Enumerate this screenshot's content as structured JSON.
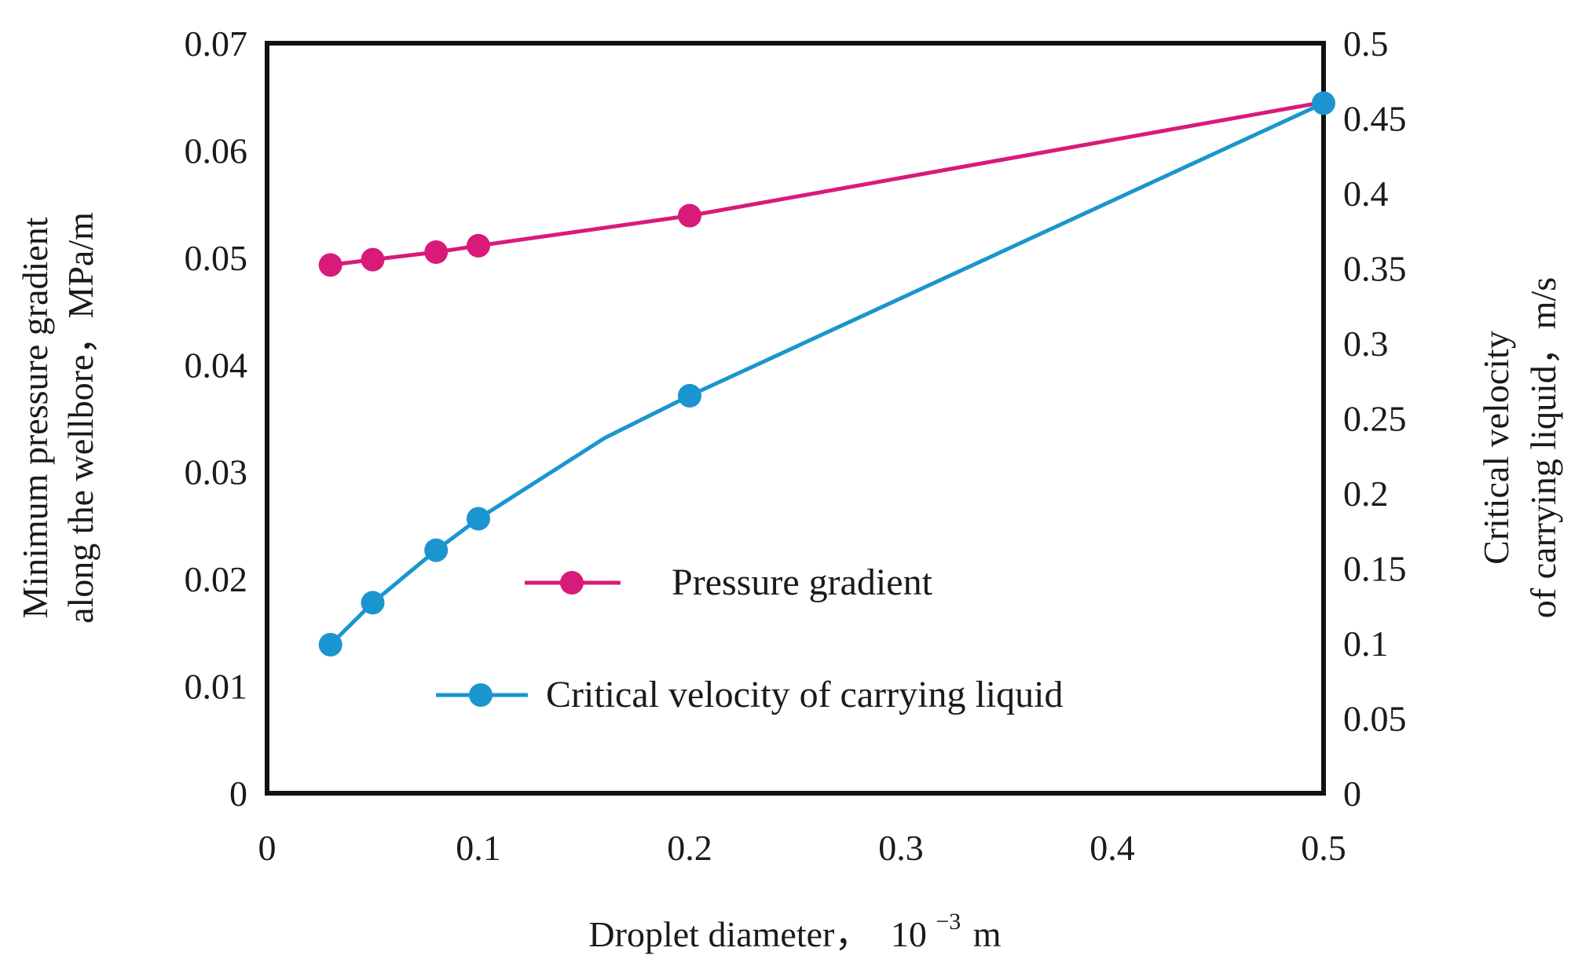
{
  "chart_data": {
    "type": "line",
    "title": "",
    "xlabel": "Droplet diameter，",
    "xlabel_unit_base": "10",
    "xlabel_unit_exp": "−3",
    "xlabel_unit_suffix": "m",
    "ylabel_left_line1": "Minimum pressure gradient",
    "ylabel_left_line2": "along the wellbore，MPa/m",
    "ylabel_right_line1": "Critical velocity",
    "ylabel_right_line2": "of carrying liquid，m/s",
    "xlim": [
      0,
      0.5
    ],
    "ylim_left": [
      0,
      0.07
    ],
    "ylim_right": [
      0,
      0.5
    ],
    "x_ticks": [
      "0",
      "0.1",
      "0.2",
      "0.3",
      "0.4",
      "0.5"
    ],
    "y_left_ticks": [
      "0",
      "0.01",
      "0.02",
      "0.03",
      "0.04",
      "0.05",
      "0.06",
      "0.07"
    ],
    "y_right_ticks": [
      "0",
      "0.05",
      "0.1",
      "0.15",
      "0.2",
      "0.25",
      "0.3",
      "0.35",
      "0.4",
      "0.45",
      "0.5"
    ],
    "grid": false,
    "legend_position": "center",
    "series": [
      {
        "name": "Pressure gradient",
        "axis": "left",
        "color": "#d81b7a",
        "x": [
          0.03,
          0.05,
          0.08,
          0.1,
          0.2,
          0.5
        ],
        "values": [
          0.0493,
          0.0498,
          0.0505,
          0.0511,
          0.0539,
          0.0645
        ],
        "markers": [
          true,
          true,
          true,
          true,
          true,
          false
        ]
      },
      {
        "name": "Critical velocity of carrying liquid",
        "axis": "right",
        "color": "#1a95cf",
        "x": [
          0.03,
          0.05,
          0.08,
          0.1,
          0.16,
          0.2,
          0.5
        ],
        "values": [
          0.099,
          0.127,
          0.162,
          0.183,
          0.237,
          0.265,
          0.46
        ],
        "markers": [
          true,
          true,
          true,
          true,
          false,
          true,
          true
        ]
      }
    ]
  }
}
